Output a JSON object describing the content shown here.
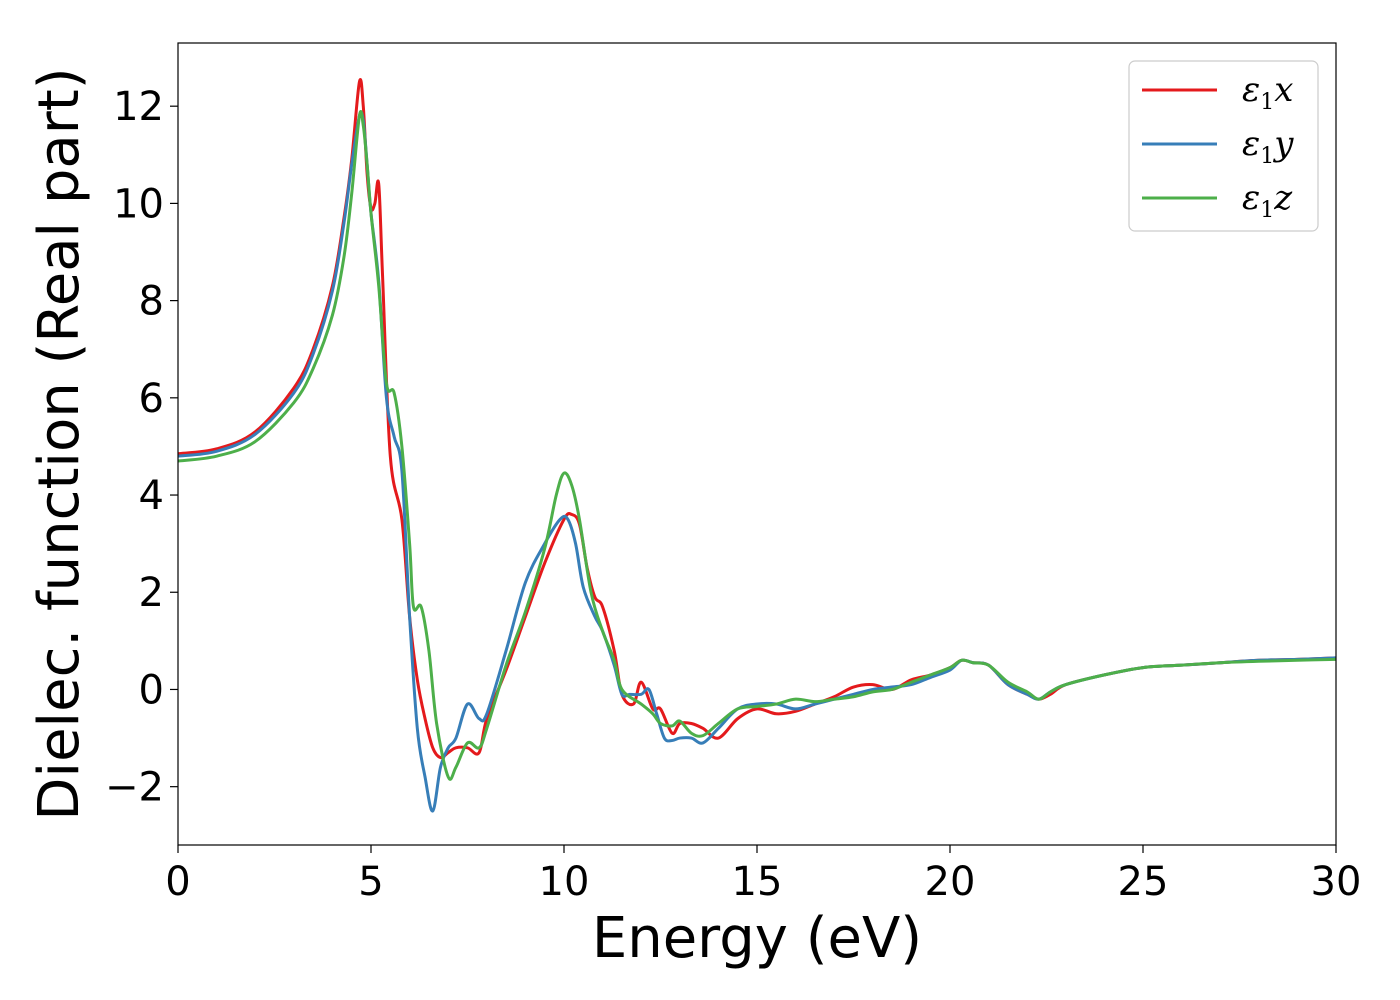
{
  "chart_data": {
    "type": "line",
    "title": "",
    "xlabel": "Energy (eV)",
    "ylabel": "Dielec. function (Real part)",
    "xlim": [
      0,
      30
    ],
    "ylim": [
      -3.2,
      13.3
    ],
    "xticks": [
      0,
      5,
      10,
      15,
      20,
      25,
      30
    ],
    "yticks": [
      -2,
      0,
      2,
      4,
      6,
      8,
      10,
      12
    ],
    "grid": false,
    "legend_position": "top-right",
    "series": [
      {
        "name": "ε1x",
        "legend_base": "ε",
        "legend_sub": "1",
        "legend_var": "x",
        "color": "#e41a1c",
        "x": [
          0,
          1,
          2,
          3,
          3.5,
          4,
          4.3,
          4.5,
          4.7,
          4.8,
          4.9,
          5.0,
          5.1,
          5.2,
          5.3,
          5.5,
          5.8,
          6.0,
          6.2,
          6.4,
          6.6,
          6.8,
          7.0,
          7.2,
          7.5,
          7.8,
          8.0,
          8.5,
          9.0,
          9.5,
          10.0,
          10.2,
          10.4,
          10.6,
          10.8,
          11.0,
          11.3,
          11.5,
          11.8,
          12.0,
          12.3,
          12.5,
          12.8,
          13.0,
          13.3,
          13.6,
          14.0,
          14.5,
          15.0,
          15.5,
          16.0,
          16.5,
          17.0,
          17.5,
          18.0,
          18.5,
          19.0,
          19.5,
          20.0,
          20.3,
          20.6,
          21.0,
          21.5,
          22.0,
          22.3,
          22.6,
          23.0,
          24.0,
          25.0,
          26.0,
          27.0,
          28.0,
          29.0,
          30.0
        ],
        "y": [
          4.85,
          4.95,
          5.3,
          6.2,
          7.0,
          8.3,
          9.7,
          10.9,
          12.5,
          12.0,
          10.6,
          9.9,
          10.0,
          10.4,
          8.5,
          4.8,
          3.5,
          1.5,
          0.2,
          -0.6,
          -1.2,
          -1.4,
          -1.3,
          -1.2,
          -1.2,
          -1.3,
          -0.6,
          0.4,
          1.5,
          2.6,
          3.5,
          3.6,
          3.4,
          2.5,
          1.9,
          1.7,
          0.8,
          -0.1,
          -0.3,
          0.15,
          -0.4,
          -0.4,
          -0.9,
          -0.7,
          -0.7,
          -0.8,
          -1.0,
          -0.6,
          -0.4,
          -0.5,
          -0.45,
          -0.3,
          -0.15,
          0.05,
          0.1,
          0.0,
          0.2,
          0.3,
          0.45,
          0.6,
          0.55,
          0.5,
          0.1,
          -0.1,
          -0.2,
          -0.1,
          0.1,
          0.3,
          0.45,
          0.5,
          0.55,
          0.6,
          0.62,
          0.65
        ]
      },
      {
        "name": "ε1y",
        "legend_base": "ε",
        "legend_sub": "1",
        "legend_var": "y",
        "color": "#377eb8",
        "x": [
          0,
          1,
          2,
          3,
          3.5,
          4,
          4.3,
          4.5,
          4.7,
          4.8,
          4.9,
          5.0,
          5.2,
          5.4,
          5.6,
          5.8,
          6.0,
          6.2,
          6.4,
          6.6,
          6.8,
          7.0,
          7.2,
          7.5,
          7.8,
          8.0,
          8.5,
          9.0,
          9.5,
          9.9,
          10.1,
          10.3,
          10.5,
          10.8,
          11.0,
          11.3,
          11.5,
          11.7,
          12.0,
          12.2,
          12.4,
          12.6,
          12.8,
          13.0,
          13.3,
          13.6,
          14.0,
          14.5,
          15.0,
          15.5,
          16.0,
          16.5,
          17.0,
          17.5,
          18.0,
          18.5,
          19.0,
          19.5,
          20.0,
          20.3,
          20.6,
          21.0,
          21.5,
          22.0,
          22.3,
          22.6,
          23.0,
          24.0,
          25.0,
          26.0,
          27.0,
          28.0,
          29.0,
          30.0
        ],
        "y": [
          4.8,
          4.9,
          5.25,
          6.1,
          6.9,
          8.2,
          9.6,
          10.8,
          11.8,
          11.7,
          10.8,
          9.8,
          8.4,
          6.0,
          5.2,
          4.5,
          1.5,
          -0.8,
          -1.8,
          -2.5,
          -1.6,
          -1.2,
          -1.0,
          -0.3,
          -0.6,
          -0.5,
          0.8,
          2.2,
          3.0,
          3.5,
          3.5,
          3.0,
          2.1,
          1.5,
          1.2,
          0.5,
          -0.1,
          -0.1,
          -0.1,
          0.0,
          -0.5,
          -1.0,
          -1.05,
          -1.0,
          -1.0,
          -1.1,
          -0.8,
          -0.4,
          -0.3,
          -0.3,
          -0.4,
          -0.3,
          -0.2,
          -0.1,
          0.0,
          0.05,
          0.1,
          0.25,
          0.4,
          0.6,
          0.55,
          0.5,
          0.1,
          -0.1,
          -0.2,
          -0.05,
          0.1,
          0.3,
          0.45,
          0.5,
          0.55,
          0.6,
          0.62,
          0.65
        ]
      },
      {
        "name": "ε1z",
        "legend_base": "ε",
        "legend_sub": "1",
        "legend_var": "z",
        "color": "#4daf4a",
        "x": [
          0,
          1,
          2,
          3,
          3.5,
          4,
          4.3,
          4.5,
          4.7,
          4.8,
          4.9,
          5.0,
          5.2,
          5.4,
          5.6,
          5.8,
          6.0,
          6.1,
          6.3,
          6.5,
          6.7,
          7.0,
          7.2,
          7.5,
          7.8,
          8.0,
          8.5,
          9.0,
          9.5,
          9.8,
          10.0,
          10.2,
          10.4,
          10.7,
          11.0,
          11.3,
          11.5,
          12.0,
          12.3,
          12.5,
          12.8,
          13.0,
          13.3,
          13.6,
          14.0,
          14.5,
          15.0,
          15.5,
          16.0,
          16.5,
          17.0,
          17.5,
          18.0,
          18.5,
          19.0,
          19.5,
          20.0,
          20.3,
          20.6,
          21.0,
          21.5,
          22.0,
          22.3,
          22.6,
          23.0,
          24.0,
          25.0,
          26.0,
          27.0,
          28.0,
          29.0,
          30.0
        ],
        "y": [
          4.7,
          4.8,
          5.1,
          5.9,
          6.6,
          7.7,
          8.9,
          10.2,
          11.8,
          11.6,
          10.8,
          9.8,
          8.3,
          6.3,
          6.1,
          5.0,
          3.0,
          1.7,
          1.7,
          0.8,
          -0.7,
          -1.8,
          -1.6,
          -1.1,
          -1.2,
          -0.8,
          0.5,
          1.6,
          2.9,
          4.0,
          4.45,
          4.2,
          3.5,
          2.0,
          1.2,
          0.6,
          0.0,
          -0.3,
          -0.5,
          -0.7,
          -0.75,
          -0.65,
          -0.9,
          -0.95,
          -0.7,
          -0.4,
          -0.35,
          -0.3,
          -0.2,
          -0.25,
          -0.2,
          -0.15,
          -0.05,
          0.0,
          0.15,
          0.3,
          0.45,
          0.6,
          0.55,
          0.5,
          0.15,
          -0.05,
          -0.2,
          -0.05,
          0.1,
          0.3,
          0.45,
          0.5,
          0.55,
          0.58,
          0.6,
          0.62
        ]
      }
    ]
  }
}
